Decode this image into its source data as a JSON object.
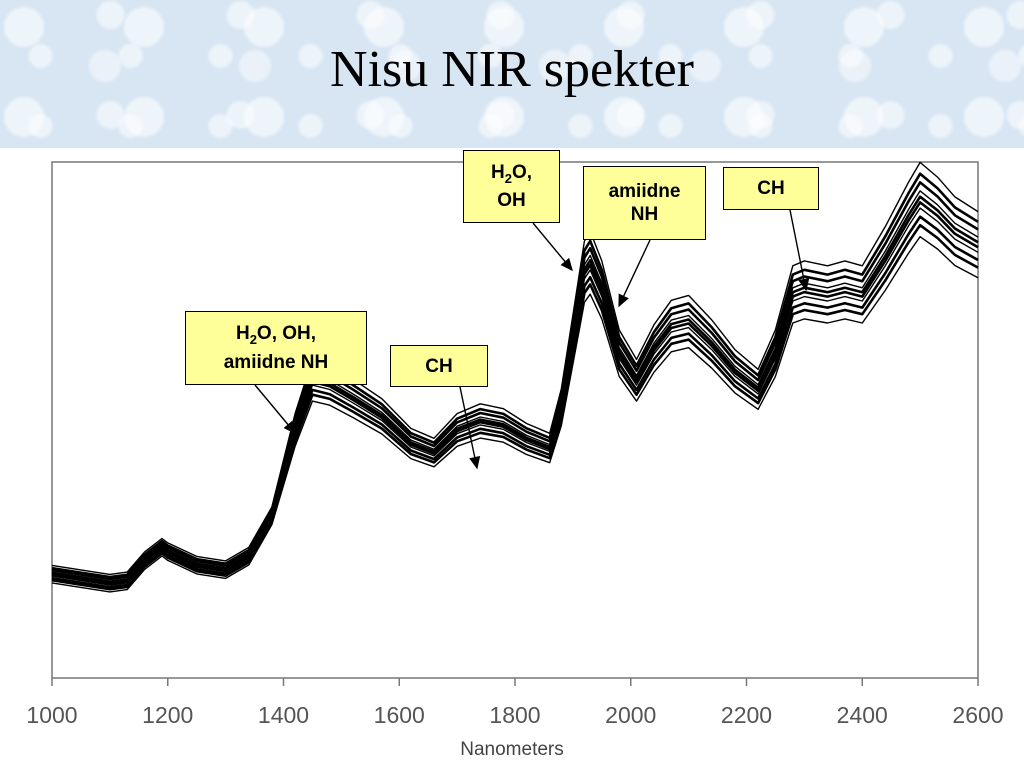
{
  "slide": {
    "title": "Nisu NIR spekter"
  },
  "chart_data": {
    "type": "line",
    "title": "Nisu NIR spekter",
    "xlabel": "Nanometers",
    "ylabel": "",
    "xlim": [
      1000,
      2600
    ],
    "x_ticks": [
      "1000",
      "1200",
      "1400",
      "1600",
      "1800",
      "2000",
      "2200",
      "2400",
      "2600"
    ],
    "legend": "none",
    "grid": false,
    "line_color": "#000000",
    "series_offsets_relative": [
      -0.06,
      -0.04,
      -0.025,
      -0.01,
      0,
      0.01,
      0.02,
      0.035,
      0.05,
      0.07
    ],
    "series_mean": {
      "x": [
        1000,
        1050,
        1100,
        1130,
        1160,
        1190,
        1200,
        1250,
        1300,
        1340,
        1380,
        1420,
        1450,
        1480,
        1520,
        1570,
        1620,
        1660,
        1700,
        1740,
        1780,
        1820,
        1860,
        1880,
        1900,
        1920,
        1930,
        1950,
        1980,
        2010,
        2040,
        2070,
        2100,
        2140,
        2180,
        2220,
        2250,
        2280,
        2300,
        2340,
        2370,
        2400,
        2440,
        2480,
        2500,
        2530,
        2560,
        2600
      ],
      "y": [
        0.23,
        0.22,
        0.21,
        0.215,
        0.26,
        0.29,
        0.28,
        0.25,
        0.24,
        0.27,
        0.36,
        0.55,
        0.66,
        0.65,
        0.62,
        0.58,
        0.52,
        0.5,
        0.55,
        0.57,
        0.56,
        0.53,
        0.51,
        0.6,
        0.75,
        0.9,
        0.92,
        0.86,
        0.72,
        0.66,
        0.73,
        0.78,
        0.79,
        0.74,
        0.68,
        0.64,
        0.72,
        0.85,
        0.86,
        0.85,
        0.86,
        0.85,
        0.93,
        1.02,
        1.06,
        1.03,
        0.99,
        0.96
      ]
    },
    "annotations": [
      {
        "label_parts": [
          "H",
          "2",
          "O, OH,"
        ],
        "label_line2": "amiidne NH"
      },
      {
        "label": "CH"
      },
      {
        "label_parts": [
          "H",
          "2",
          "O,"
        ],
        "label_line2": "OH"
      },
      {
        "label_line1": "amiidne",
        "label_line2": "NH"
      },
      {
        "label": "CH"
      }
    ]
  }
}
